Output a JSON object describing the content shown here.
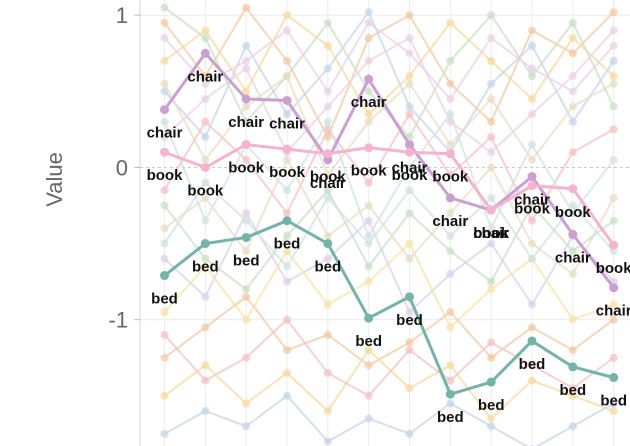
{
  "chart_data": {
    "type": "line",
    "ylabel": "Value",
    "yticks": [
      1,
      0,
      -1
    ],
    "y_tick_labels": [
      "1",
      "0",
      "-1"
    ],
    "ylim": [
      -1.83,
      1.1
    ],
    "x": [
      0,
      1,
      2,
      3,
      4,
      5,
      6,
      7,
      8,
      9,
      10,
      11
    ],
    "xlim": [
      -0.6,
      11.4
    ],
    "grid": true,
    "highlighted_series": [
      {
        "name": "chair",
        "color": "#c9a0d0",
        "values": [
          0.38,
          0.75,
          0.45,
          0.44,
          0.05,
          0.58,
          0.15,
          -0.2,
          -0.28,
          -0.06,
          -0.44,
          -0.79
        ],
        "labels": [
          "chair",
          "chair",
          "chair",
          "chair",
          "chair",
          "chair",
          "chair",
          "chair",
          "chair",
          "chair",
          "chair",
          "chair"
        ]
      },
      {
        "name": "book",
        "color": "#f4b3cf",
        "values": [
          0.1,
          0.0,
          0.15,
          0.12,
          0.09,
          0.13,
          0.1,
          0.09,
          -0.28,
          -0.12,
          -0.14,
          -0.51
        ],
        "labels": [
          "book",
          "book",
          "book",
          "book",
          "book",
          "book",
          "book",
          "book",
          "book",
          "book",
          "book",
          "book"
        ]
      },
      {
        "name": "bed",
        "color": "#74b3a8",
        "values": [
          -0.71,
          -0.5,
          -0.46,
          -0.35,
          -0.5,
          -0.99,
          -0.85,
          -1.49,
          -1.41,
          -1.14,
          -1.31,
          -1.38
        ],
        "labels": [
          "bed",
          "bed",
          "bed",
          "bed",
          "bed",
          "bed",
          "bed",
          "bed",
          "bed",
          "bed",
          "bed",
          "bed"
        ]
      }
    ],
    "background_series_colors": [
      "#f2c9a6",
      "#f6d9a0",
      "#c4d5e8",
      "#c8e0c4",
      "#ead1e6",
      "#f4c2c2",
      "#e8dcc4",
      "#cfe3df",
      "#dcd0ec",
      "#f7e3a8"
    ],
    "background_series": [
      [
        0.95,
        0.6,
        1.05,
        0.7,
        0.2,
        0.85,
        1.0,
        0.55,
        0.3,
        0.9,
        0.75,
        1.02
      ],
      [
        0.7,
        0.9,
        0.5,
        1.0,
        0.8,
        0.35,
        0.6,
        0.95,
        0.7,
        0.45,
        0.85,
        0.6
      ],
      [
        0.5,
        0.2,
        0.8,
        0.35,
        0.65,
        1.02,
        0.4,
        0.1,
        0.55,
        0.8,
        0.3,
        0.7
      ],
      [
        1.05,
        0.85,
        0.3,
        0.6,
        0.95,
        0.5,
        0.2,
        0.7,
        1.0,
        0.6,
        0.95,
        0.4
      ],
      [
        0.2,
        0.45,
        0.65,
        0.1,
        0.4,
        0.7,
        0.85,
        0.3,
        0.1,
        0.35,
        0.6,
        0.9
      ],
      [
        -0.15,
        0.3,
        0.05,
        -0.3,
        0.25,
        -0.1,
        0.35,
        -0.05,
        0.2,
        -0.35,
        0.1,
        0.25
      ],
      [
        -0.4,
        -0.2,
        -0.55,
        0.05,
        -0.45,
        -0.25,
        -0.6,
        -0.3,
        0.0,
        -0.5,
        -0.7,
        -0.2
      ],
      [
        0.3,
        -0.35,
        0.15,
        -0.15,
        0.3,
        -0.45,
        0.0,
        0.35,
        -0.4,
        0.15,
        -0.3,
        0.05
      ],
      [
        -0.6,
        -0.85,
        -0.3,
        -0.75,
        -0.6,
        -0.35,
        -0.95,
        -0.7,
        -0.5,
        -0.9,
        -0.45,
        -0.75
      ],
      [
        -0.95,
        -0.65,
        -1.0,
        -0.55,
        -0.9,
        -0.75,
        -0.5,
        -1.05,
        -0.8,
        -0.6,
        -1.0,
        -0.9
      ],
      [
        -1.25,
        -1.05,
        -0.85,
        -1.2,
        -1.1,
        -1.3,
        -1.15,
        -0.95,
        -1.25,
        -1.05,
        -1.2,
        -1.0
      ],
      [
        -1.5,
        -1.3,
        -1.55,
        -1.35,
        -1.6,
        -1.2,
        -1.45,
        -1.3,
        -1.65,
        -1.4,
        -1.5,
        -1.6
      ],
      [
        -1.75,
        -1.6,
        -1.7,
        -1.5,
        -1.8,
        -1.65,
        -1.75,
        -1.55,
        -1.7,
        -1.85,
        -1.7,
        -1.55
      ],
      [
        -0.25,
        -0.6,
        -0.8,
        -0.45,
        -0.15,
        -0.65,
        -0.3,
        -0.55,
        -0.75,
        -0.25,
        -0.55,
        -0.35
      ],
      [
        0.85,
        0.55,
        0.7,
        0.9,
        0.5,
        0.95,
        0.75,
        0.45,
        0.85,
        0.65,
        0.5,
        0.8
      ],
      [
        -1.1,
        -1.4,
        -1.25,
        -1.0,
        -1.35,
        -1.5,
        -1.2,
        -1.4,
        -1.15,
        -1.3,
        -1.45,
        -1.25
      ],
      [
        0.55,
        0.05,
        0.4,
        0.6,
        -0.05,
        0.3,
        0.55,
        0.15,
        0.45,
        0.05,
        0.4,
        0.55
      ],
      [
        -0.5,
        -0.1,
        -0.35,
        -0.65,
        -0.2,
        -0.5,
        -0.15,
        -0.45,
        -0.2,
        -0.6,
        -0.25,
        -0.55
      ]
    ]
  }
}
